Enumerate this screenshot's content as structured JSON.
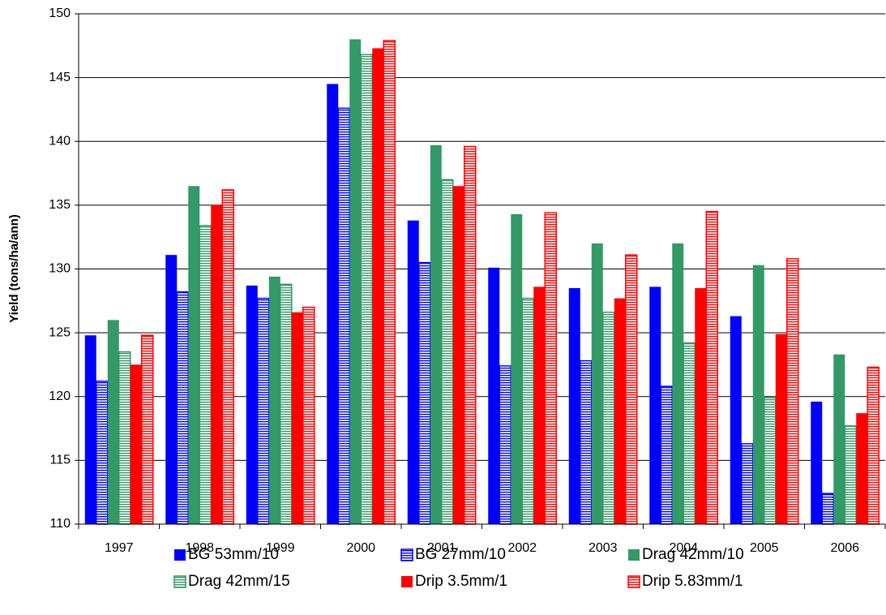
{
  "chart_data": {
    "type": "bar",
    "y_label": "Yield (tons/ha/ann)",
    "categories": [
      "1997",
      "1998",
      "1999",
      "2000",
      "2001",
      "2002",
      "2003",
      "2004",
      "2005",
      "2006"
    ],
    "series": [
      {
        "name": "BG 53mm/10",
        "color": "#0000ff",
        "hatched": false,
        "values": [
          124.8,
          131.1,
          128.7,
          144.5,
          133.8,
          130.1,
          128.5,
          128.6,
          126.3,
          119.6
        ]
      },
      {
        "name": "BG 27mm/10",
        "color": "#0000ff",
        "hatched": true,
        "values": [
          121.2,
          128.2,
          127.7,
          142.6,
          130.5,
          122.4,
          122.8,
          120.8,
          116.3,
          112.4
        ]
      },
      {
        "name": "Drag 42mm/10",
        "color": "#339966",
        "hatched": false,
        "values": [
          126.0,
          136.5,
          129.4,
          148.0,
          139.7,
          134.3,
          132.0,
          132.0,
          130.3,
          123.3
        ]
      },
      {
        "name": "Drag 42mm/15",
        "color": "#339966",
        "hatched": true,
        "values": [
          123.5,
          133.4,
          128.8,
          146.8,
          137.0,
          127.7,
          126.6,
          124.2,
          119.9,
          117.7
        ]
      },
      {
        "name": "Drip 3.5mm/1",
        "color": "#ff0000",
        "hatched": false,
        "values": [
          122.5,
          135.0,
          126.6,
          147.3,
          136.5,
          128.6,
          127.7,
          128.5,
          124.9,
          118.7
        ]
      },
      {
        "name": "Drip 5.83mm/1",
        "color": "#ff0000",
        "hatched": true,
        "values": [
          124.8,
          136.2,
          127.0,
          147.9,
          139.6,
          134.4,
          131.1,
          134.5,
          130.8,
          122.3
        ]
      }
    ],
    "ylim": [
      110,
      150
    ],
    "yticks": [
      110,
      115,
      120,
      125,
      130,
      135,
      140,
      145,
      150
    ],
    "grid": true
  }
}
